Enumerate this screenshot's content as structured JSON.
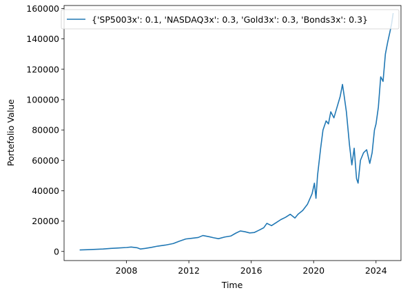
{
  "chart_data": {
    "type": "line",
    "title": "",
    "xlabel": "Time",
    "ylabel": "Portefolio Value",
    "xlim": [
      2004.0,
      2025.6
    ],
    "ylim": [
      -6000,
      162000
    ],
    "grid": false,
    "legend_position": "top-right",
    "xticks": [
      {
        "value": 2008,
        "label": "2008"
      },
      {
        "value": 2012,
        "label": "2012"
      },
      {
        "value": 2016,
        "label": "2016"
      },
      {
        "value": 2020,
        "label": "2020"
      },
      {
        "value": 2024,
        "label": "2024"
      }
    ],
    "yticks": [
      {
        "value": 0,
        "label": "0"
      },
      {
        "value": 20000,
        "label": "20000"
      },
      {
        "value": 40000,
        "label": "40000"
      },
      {
        "value": 60000,
        "label": "60000"
      },
      {
        "value": 80000,
        "label": "80000"
      },
      {
        "value": 100000,
        "label": "100000"
      },
      {
        "value": 120000,
        "label": "120000"
      },
      {
        "value": 140000,
        "label": "140000"
      },
      {
        "value": 160000,
        "label": "160000"
      }
    ],
    "series": [
      {
        "name": "{'SP5003x': 0.1, 'NASDAQ3x': 0.3, 'Gold3x': 0.3, 'Bonds3x': 0.3}",
        "color": "#1f77b4",
        "x": [
          2005.0,
          2005.5,
          2006.0,
          2006.5,
          2007.0,
          2007.5,
          2008.0,
          2008.3,
          2008.7,
          2008.9,
          2009.2,
          2009.6,
          2010.0,
          2010.5,
          2011.0,
          2011.4,
          2011.8,
          2012.2,
          2012.6,
          2012.9,
          2013.3,
          2013.6,
          2013.9,
          2014.3,
          2014.7,
          2015.0,
          2015.3,
          2015.6,
          2015.9,
          2016.2,
          2016.5,
          2016.8,
          2017.0,
          2017.3,
          2017.6,
          2017.9,
          2018.2,
          2018.5,
          2018.8,
          2019.0,
          2019.3,
          2019.6,
          2019.9,
          2020.05,
          2020.15,
          2020.25,
          2020.45,
          2020.6,
          2020.8,
          2020.95,
          2021.1,
          2021.3,
          2021.5,
          2021.7,
          2021.85,
          2021.95,
          2022.1,
          2022.3,
          2022.45,
          2022.6,
          2022.75,
          2022.85,
          2023.0,
          2023.2,
          2023.4,
          2023.6,
          2023.75,
          2023.9,
          2024.0,
          2024.15,
          2024.3,
          2024.45,
          2024.6,
          2024.75,
          2024.9,
          2025.0,
          2025.1
        ],
        "values": [
          1000,
          1150,
          1400,
          1600,
          2000,
          2300,
          2600,
          2900,
          2400,
          1600,
          2000,
          2700,
          3500,
          4200,
          5200,
          6800,
          8200,
          8700,
          9200,
          10500,
          9700,
          9000,
          8400,
          9500,
          10200,
          12000,
          13500,
          13000,
          12200,
          12500,
          14000,
          15600,
          18500,
          17000,
          19000,
          21000,
          22500,
          24500,
          22000,
          24500,
          27000,
          31000,
          38000,
          45000,
          35000,
          50000,
          68000,
          80000,
          86000,
          84000,
          92000,
          88000,
          95000,
          102000,
          110000,
          103000,
          92000,
          70000,
          57000,
          68000,
          48000,
          45000,
          60000,
          65000,
          67000,
          58000,
          65000,
          80000,
          84000,
          95000,
          115000,
          112000,
          130000,
          138000,
          145000,
          150000,
          157000
        ]
      }
    ]
  }
}
